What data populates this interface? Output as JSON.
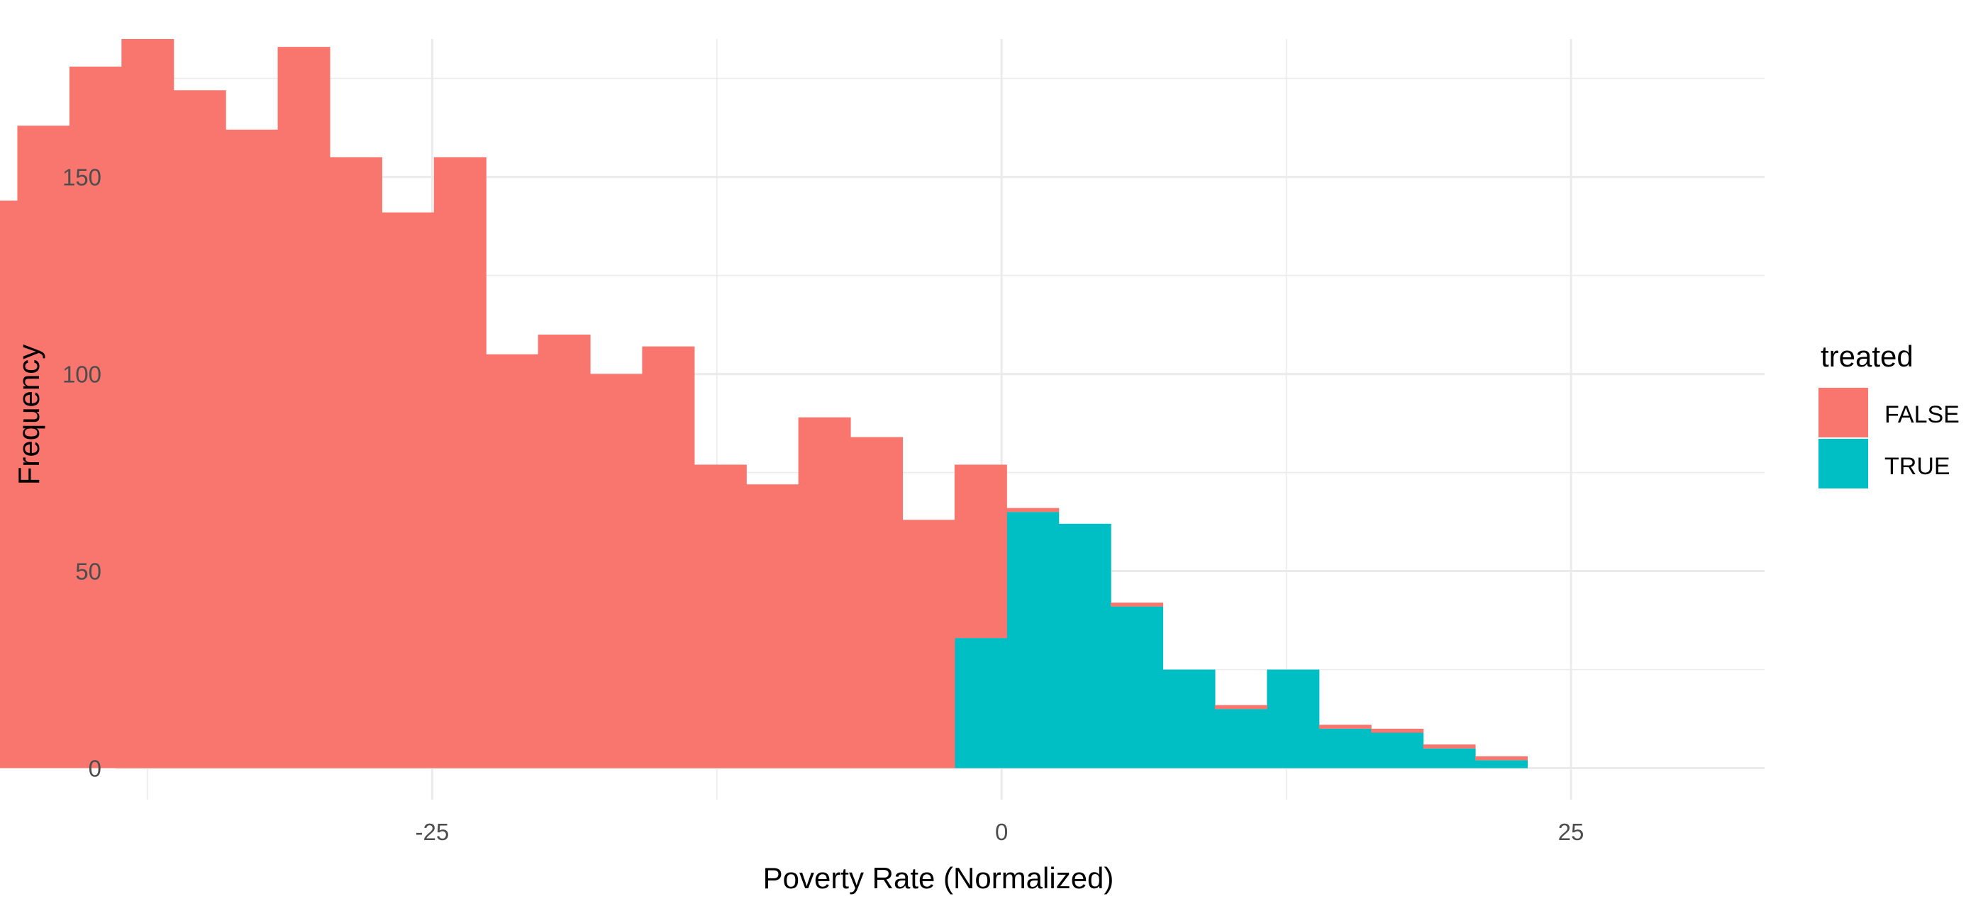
{
  "chart_data": {
    "type": "bar",
    "subtype": "stacked-histogram",
    "xlabel": "Poverty Rate (Normalized)",
    "ylabel": "Frequency",
    "xlim": [
      -38.9,
      33.5
    ],
    "ylim": [
      -8,
      185
    ],
    "x_ticks": [
      -25,
      0,
      25
    ],
    "x_tick_labels": [
      "-25",
      "0",
      "25"
    ],
    "y_ticks": [
      0,
      50,
      100,
      150
    ],
    "y_tick_labels": [
      "0",
      "50",
      "100",
      "150"
    ],
    "grid": true,
    "bin_width": 2.286,
    "bin_start": -45.5,
    "legend": {
      "title": "treated",
      "position": "right",
      "entries": [
        {
          "label": "FALSE",
          "color": "#F8766D"
        },
        {
          "label": "TRUE",
          "color": "#00BFC4"
        }
      ]
    },
    "series": [
      {
        "name": "FALSE",
        "color": "#F8766D",
        "values": [
          144,
          163,
          178,
          185,
          172,
          162,
          183,
          155,
          141,
          155,
          105,
          110,
          100,
          107,
          77,
          72,
          89,
          84,
          63,
          44,
          1,
          0,
          1,
          0,
          1,
          0,
          1,
          1,
          1,
          1
        ]
      },
      {
        "name": "TRUE",
        "color": "#00BFC4",
        "values": [
          0,
          0,
          0,
          0,
          0,
          0,
          0,
          0,
          0,
          0,
          0,
          0,
          0,
          0,
          0,
          0,
          0,
          0,
          0,
          33,
          65,
          62,
          41,
          25,
          15,
          25,
          10,
          9,
          5,
          2
        ]
      }
    ]
  }
}
